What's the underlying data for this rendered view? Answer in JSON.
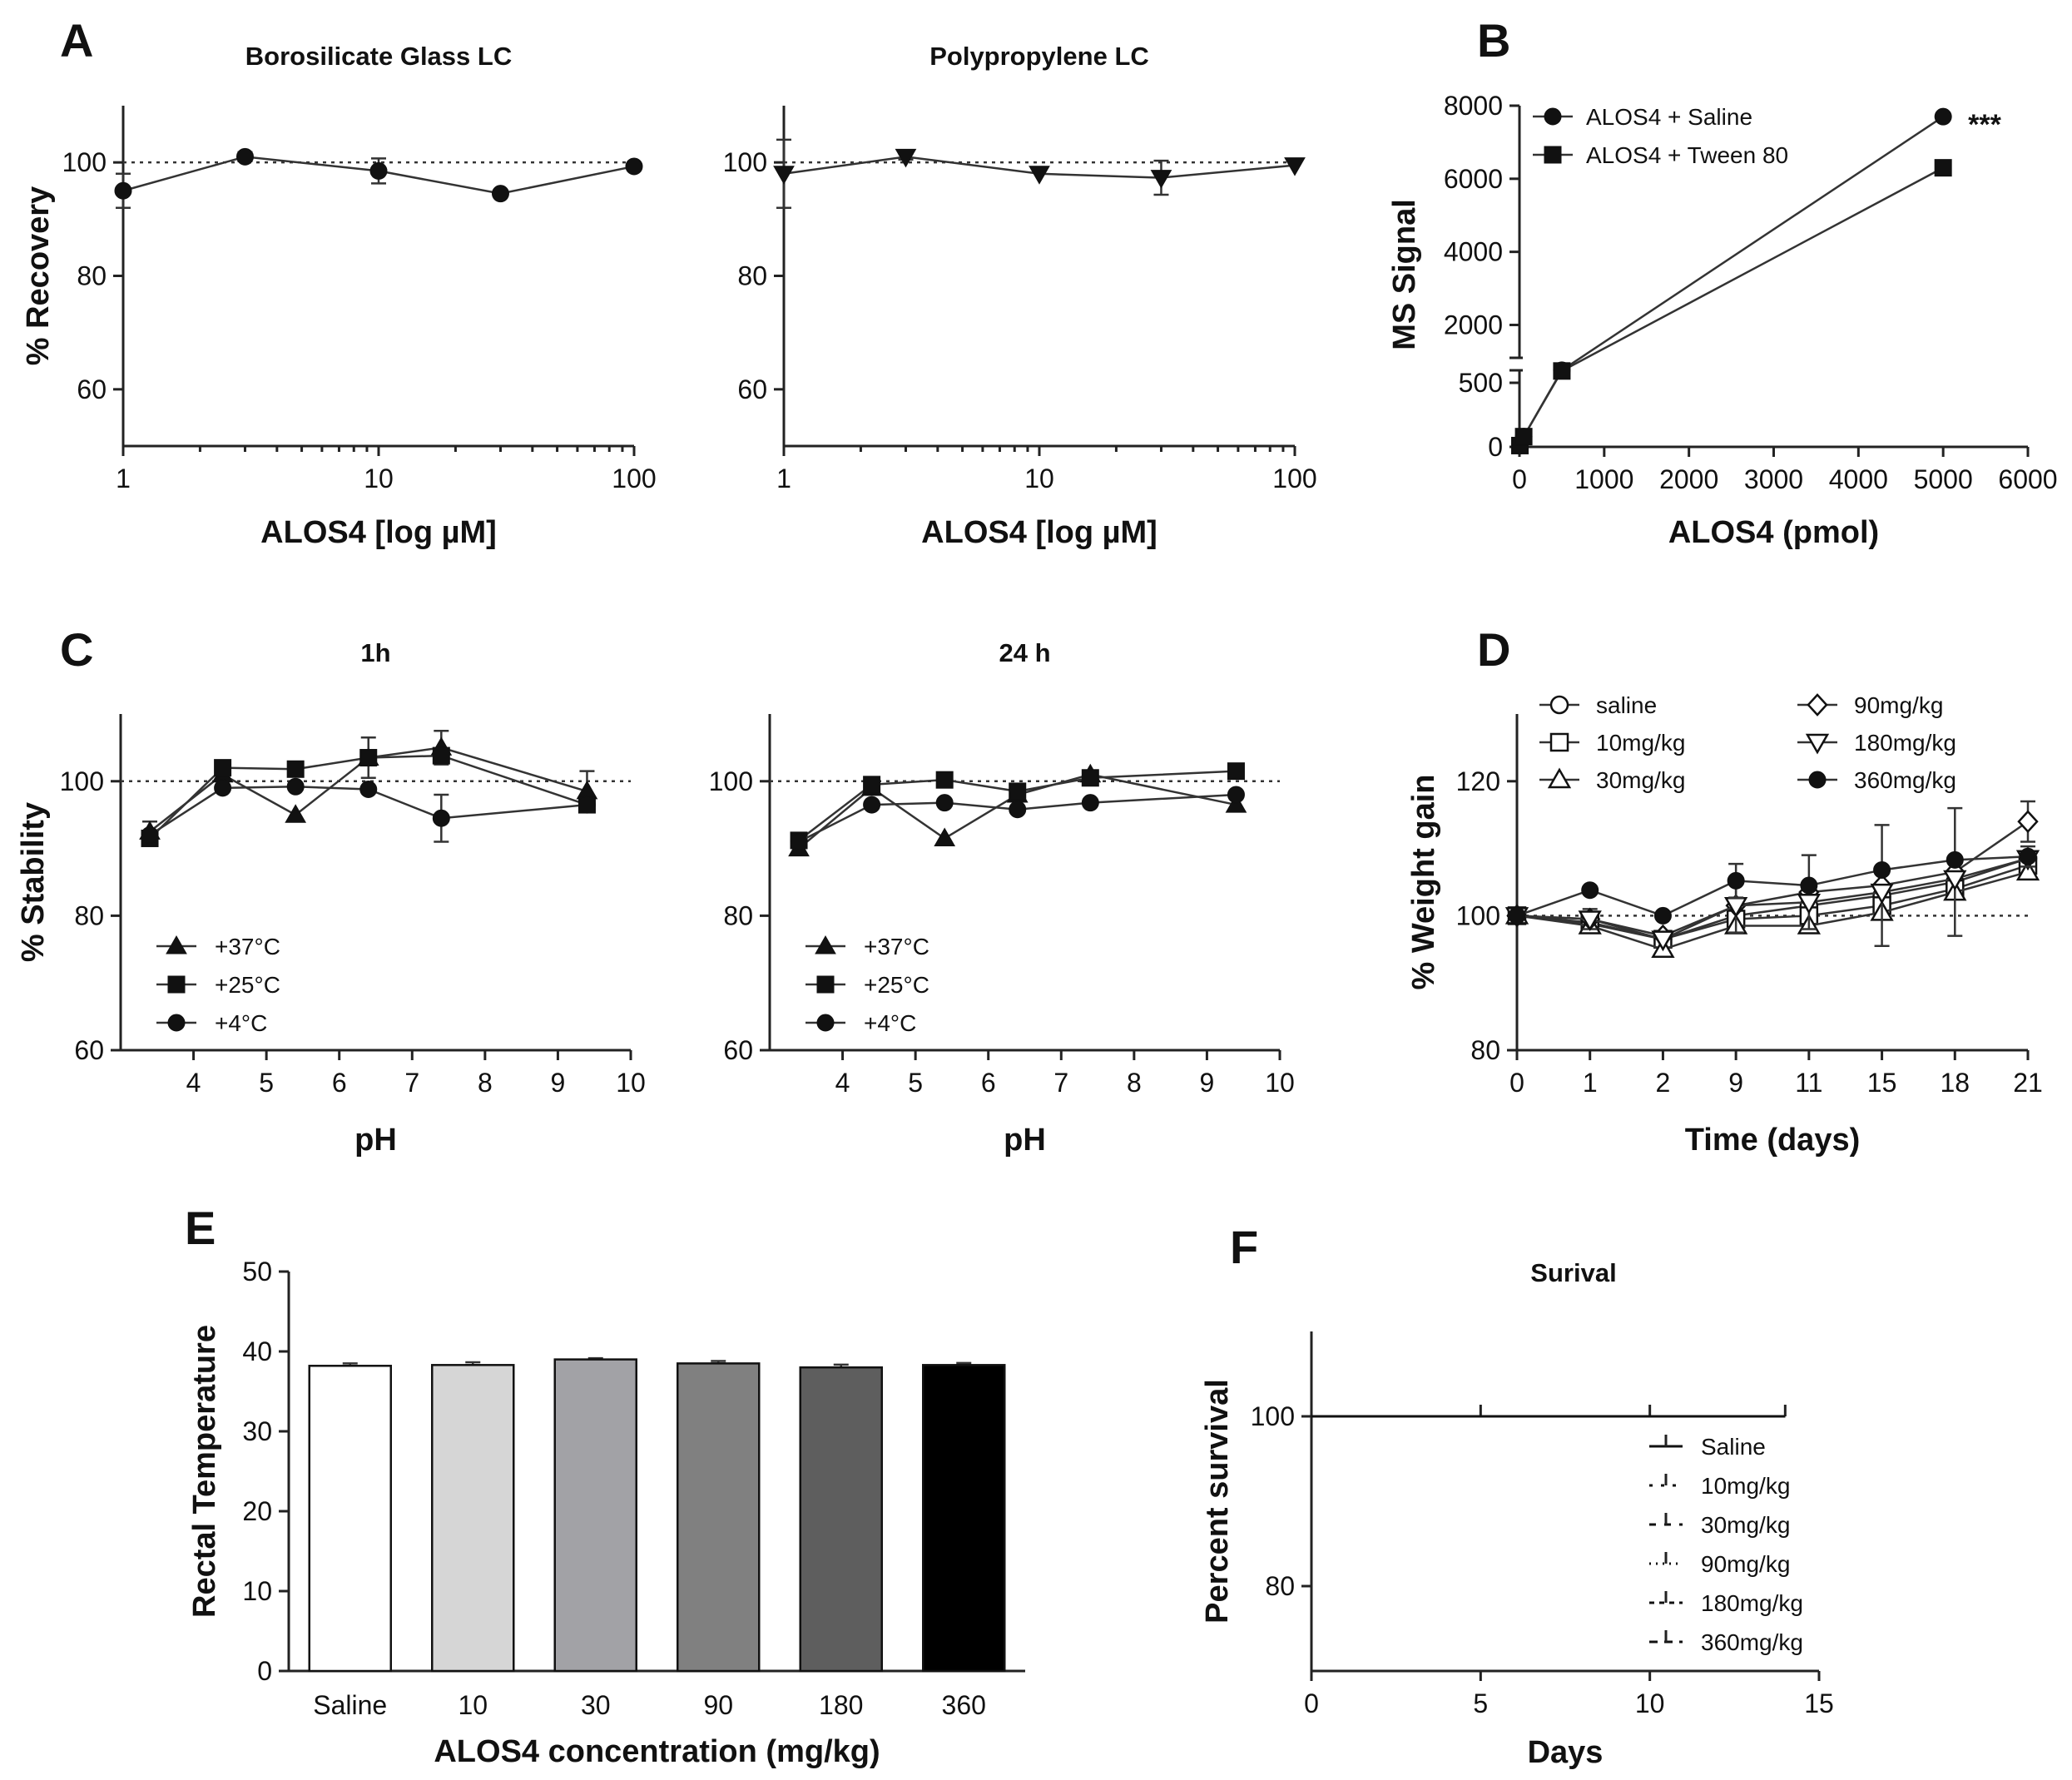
{
  "panel_labels": {
    "A": "A",
    "B": "B",
    "C": "C",
    "D": "D",
    "E": "E",
    "F": "F"
  },
  "chart_data": [
    {
      "id": "A1",
      "type": "line",
      "panel": "A",
      "title": "Borosilicate Glass LC",
      "xlabel": "ALOS4 [log µM]",
      "ylabel": "% Recovery",
      "xscale": "log",
      "xlim": [
        1,
        100
      ],
      "ylim": [
        50,
        110
      ],
      "xticks": [
        1,
        10,
        100
      ],
      "yticks": [
        60,
        80,
        100
      ],
      "reference_line": 100,
      "series": [
        {
          "name": "ALOS4",
          "marker": "circle",
          "x": [
            1,
            3,
            10,
            30,
            100
          ],
          "y": [
            95,
            101,
            98.5,
            94.5,
            99.3
          ],
          "err": [
            3,
            0.8,
            2.2,
            0,
            0
          ]
        }
      ]
    },
    {
      "id": "A2",
      "type": "line",
      "panel": "A",
      "title": "Polypropylene LC",
      "xlabel": "ALOS4 [log µM]",
      "ylabel": "",
      "xscale": "log",
      "xlim": [
        1,
        100
      ],
      "ylim": [
        50,
        110
      ],
      "xticks": [
        1,
        10,
        100
      ],
      "yticks": [
        60,
        80,
        100
      ],
      "reference_line": 100,
      "series": [
        {
          "name": "ALOS4",
          "marker": "triangle-down",
          "x": [
            1,
            3,
            10,
            30,
            100
          ],
          "y": [
            98,
            101,
            98,
            97.3,
            99.5
          ],
          "err": [
            6,
            0.5,
            0,
            3,
            0
          ]
        }
      ]
    },
    {
      "id": "B",
      "type": "line",
      "panel": "B",
      "title": "",
      "xlabel": "ALOS4 (pmol)",
      "ylabel": "MS Signal",
      "xlim": [
        0,
        6000
      ],
      "xticks": [
        0,
        1000,
        2000,
        3000,
        4000,
        5000,
        6000
      ],
      "yticks": [
        0,
        500,
        2000,
        4000,
        6000,
        8000
      ],
      "y_axis_break": [
        500,
        1100
      ],
      "annotation": "***",
      "series": [
        {
          "name": "ALOS4 + Saline",
          "marker": "circle",
          "x": [
            5,
            50,
            500,
            5000
          ],
          "y": [
            10,
            80,
            760,
            7700
          ]
        },
        {
          "name": "ALOS4 + Tween 80",
          "marker": "square",
          "x": [
            5,
            50,
            500,
            5000
          ],
          "y": [
            10,
            80,
            740,
            6300
          ]
        }
      ]
    },
    {
      "id": "C1",
      "type": "line",
      "panel": "C",
      "title": "1h",
      "xlabel": "pH",
      "ylabel": "% Stability",
      "xlim": [
        3,
        10
      ],
      "ylim": [
        60,
        110
      ],
      "xticks": [
        4,
        5,
        6,
        7,
        8,
        9,
        10
      ],
      "yticks": [
        60,
        80,
        100
      ],
      "reference_line": 100,
      "series": [
        {
          "name": "+37°C",
          "marker": "triangle",
          "x": [
            3.4,
            4.4,
            5.4,
            6.4,
            7.4,
            9.4
          ],
          "y": [
            92.5,
            101,
            95,
            103.5,
            105,
            98.5
          ],
          "err": [
            1.5,
            0,
            0,
            0,
            2.5,
            3
          ]
        },
        {
          "name": "+25°C",
          "marker": "square",
          "x": [
            3.4,
            4.4,
            5.4,
            6.4,
            7.4,
            9.4
          ],
          "y": [
            91.5,
            102,
            101.8,
            103.5,
            103.8,
            96.5
          ],
          "err": [
            0,
            0,
            0,
            3,
            0,
            0
          ]
        },
        {
          "name": "+4°C",
          "marker": "circle",
          "x": [
            3.4,
            4.4,
            5.4,
            6.4,
            7.4,
            9.4
          ],
          "y": [
            92,
            99,
            99.2,
            98.8,
            94.5,
            96.5
          ],
          "err": [
            0,
            0,
            0,
            0,
            3.5,
            0
          ]
        }
      ]
    },
    {
      "id": "C2",
      "type": "line",
      "panel": "C",
      "title": "24 h",
      "xlabel": "pH",
      "ylabel": "",
      "xlim": [
        3,
        10
      ],
      "ylim": [
        60,
        110
      ],
      "xticks": [
        4,
        5,
        6,
        7,
        8,
        9,
        10
      ],
      "yticks": [
        60,
        80,
        100
      ],
      "reference_line": 100,
      "series": [
        {
          "name": "+37°C",
          "marker": "triangle",
          "x": [
            3.4,
            4.4,
            5.4,
            6.4,
            7.4,
            9.4
          ],
          "y": [
            90,
            99,
            91.5,
            98,
            101,
            96.5
          ]
        },
        {
          "name": "+25°C",
          "marker": "square",
          "x": [
            3.4,
            4.4,
            5.4,
            6.4,
            7.4,
            9.4
          ],
          "y": [
            91.2,
            99.5,
            100.2,
            98.5,
            100.5,
            101.5
          ]
        },
        {
          "name": "+4°C",
          "marker": "circle",
          "x": [
            3.4,
            4.4,
            5.4,
            6.4,
            7.4,
            9.4
          ],
          "y": [
            91,
            96.5,
            96.8,
            95.8,
            96.8,
            98
          ]
        }
      ]
    },
    {
      "id": "D",
      "type": "line",
      "panel": "D",
      "title": "",
      "xlabel": "Time (days)",
      "ylabel": "% Weight gain",
      "categories": [
        "0",
        "1",
        "2",
        "9",
        "11",
        "15",
        "18",
        "21"
      ],
      "ylim": [
        80,
        130
      ],
      "yticks": [
        80,
        100,
        120
      ],
      "reference_line": 100,
      "series": [
        {
          "name": "saline",
          "marker": "circle-open",
          "values": [
            100,
            99,
            96.5,
            100,
            101.5,
            103,
            105,
            108.5
          ],
          "err": [
            0,
            0,
            0,
            0,
            0,
            0,
            0,
            0
          ]
        },
        {
          "name": "10mg/kg",
          "marker": "square-open",
          "values": [
            100,
            98.8,
            96.5,
            99.5,
            100,
            101.5,
            104,
            107.5
          ],
          "err": [
            0,
            0,
            0,
            0,
            0,
            0,
            0,
            0
          ]
        },
        {
          "name": "30mg/kg",
          "marker": "triangle-open",
          "values": [
            100,
            98.5,
            95,
            98.5,
            98.5,
            100.5,
            103.5,
            106.5
          ],
          "err": [
            0,
            0,
            0,
            0,
            0,
            0,
            0,
            0
          ]
        },
        {
          "name": "90mg/kg",
          "marker": "diamond-open",
          "values": [
            100,
            99.5,
            97,
            101.5,
            103.5,
            104.5,
            106.5,
            114
          ],
          "err": [
            0,
            1.5,
            0,
            4,
            5.5,
            9,
            9.5,
            3
          ]
        },
        {
          "name": "180mg/kg",
          "marker": "triangle-down-open",
          "values": [
            100,
            99.5,
            96.5,
            101.5,
            102,
            103.5,
            105.5,
            108.5
          ],
          "err": [
            0,
            0,
            0,
            0,
            0,
            0,
            0,
            0
          ]
        },
        {
          "name": "360mg/kg",
          "marker": "circle",
          "values": [
            100,
            103.8,
            100,
            105.2,
            104.5,
            106.8,
            108.3,
            108.8
          ],
          "err": [
            0,
            0,
            0,
            2.5,
            0,
            0,
            0,
            1.5
          ]
        }
      ]
    },
    {
      "id": "E",
      "type": "bar",
      "panel": "E",
      "title": "",
      "xlabel": "ALOS4 concentration (mg/kg)",
      "ylabel": "Rectal Temperature",
      "categories": [
        "Saline",
        "10",
        "30",
        "90",
        "180",
        "360"
      ],
      "values": [
        38.2,
        38.3,
        39.0,
        38.5,
        38.0,
        38.3
      ],
      "err": [
        0.3,
        0.35,
        0.15,
        0.3,
        0.35,
        0.25
      ],
      "colors": [
        "#ffffff",
        "#d6d6d6",
        "#a2a2a6",
        "#808080",
        "#5e5e5e",
        "#000000"
      ],
      "ylim": [
        0,
        50
      ],
      "yticks": [
        0,
        10,
        20,
        30,
        40,
        50
      ]
    },
    {
      "id": "F",
      "type": "line",
      "panel": "F",
      "title": "Surival",
      "xlabel": "Days",
      "ylabel": "Percent survival",
      "xlim": [
        0,
        15
      ],
      "ylim": [
        70,
        110
      ],
      "xticks": [
        0,
        5,
        10,
        15
      ],
      "yticks": [
        80,
        100
      ],
      "series": [
        {
          "name": "Saline",
          "x": [
            0,
            5,
            10,
            14
          ],
          "y": [
            100,
            100,
            100,
            100
          ]
        },
        {
          "name": "10mg/kg",
          "x": [
            0,
            14
          ],
          "y": [
            100,
            100
          ]
        },
        {
          "name": "30mg/kg",
          "x": [
            0,
            14
          ],
          "y": [
            100,
            100
          ]
        },
        {
          "name": "90mg/kg",
          "x": [
            0,
            14
          ],
          "y": [
            100,
            100
          ]
        },
        {
          "name": "180mg/kg",
          "x": [
            0,
            14
          ],
          "y": [
            100,
            100
          ]
        },
        {
          "name": "360mg/kg",
          "x": [
            0,
            14
          ],
          "y": [
            100,
            100
          ]
        }
      ]
    }
  ]
}
